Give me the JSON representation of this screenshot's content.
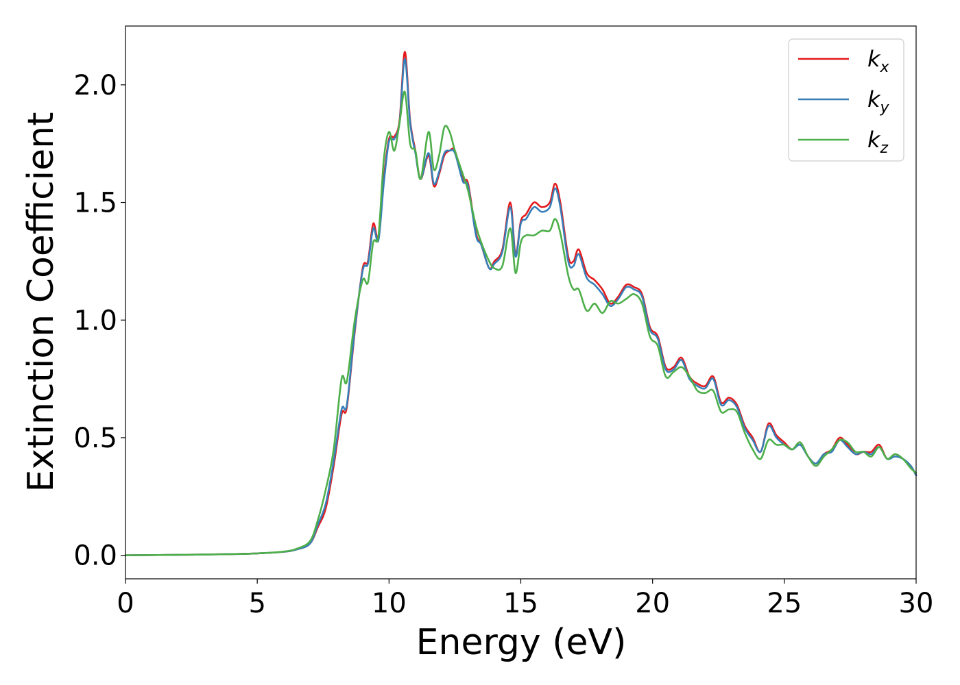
{
  "chart_data": {
    "type": "line",
    "xlabel": "Energy (eV)",
    "ylabel": "Extinction Coefficient",
    "xlim": [
      0,
      30
    ],
    "ylim": [
      -0.1,
      2.25
    ],
    "xticks": [
      "0",
      "5",
      "10",
      "15",
      "20",
      "25",
      "30"
    ],
    "yticks": [
      "0.0",
      "0.5",
      "1.0",
      "1.5",
      "2.0"
    ],
    "legend_position": "top-right",
    "grid": false,
    "colors": {
      "kx": "#e41a1c",
      "ky": "#377eb8",
      "kz": "#4daf4a"
    },
    "series": [
      {
        "key": "kx",
        "name": "k",
        "subscript": "x",
        "color": "#e41a1c",
        "x": [
          0,
          2,
          4,
          5,
          6,
          6.5,
          7,
          7.3,
          7.6,
          7.9,
          8.2,
          8.4,
          8.7,
          9.0,
          9.2,
          9.4,
          9.6,
          9.8,
          10.0,
          10.2,
          10.4,
          10.6,
          10.8,
          11.0,
          11.2,
          11.5,
          11.7,
          11.9,
          12.1,
          12.3,
          12.5,
          12.8,
          13.0,
          13.3,
          13.5,
          13.8,
          14.0,
          14.3,
          14.6,
          14.8,
          15.0,
          15.2,
          15.5,
          15.8,
          16.1,
          16.3,
          16.5,
          16.8,
          17.0,
          17.2,
          17.5,
          17.8,
          18.1,
          18.4,
          18.7,
          19.0,
          19.3,
          19.6,
          19.9,
          20.2,
          20.5,
          20.8,
          21.1,
          21.4,
          21.7,
          22.0,
          22.3,
          22.6,
          22.9,
          23.2,
          23.5,
          23.8,
          24.1,
          24.4,
          24.7,
          25.0,
          25.3,
          25.6,
          25.9,
          26.2,
          26.5,
          26.8,
          27.1,
          27.4,
          27.7,
          28.0,
          28.3,
          28.6,
          28.9,
          29.2,
          29.5,
          29.8,
          30.0
        ],
        "y": [
          0.0,
          0.002,
          0.005,
          0.008,
          0.015,
          0.025,
          0.05,
          0.12,
          0.2,
          0.38,
          0.6,
          0.63,
          0.95,
          1.22,
          1.25,
          1.41,
          1.35,
          1.6,
          1.77,
          1.78,
          1.85,
          2.14,
          1.85,
          1.72,
          1.6,
          1.7,
          1.57,
          1.62,
          1.7,
          1.72,
          1.72,
          1.6,
          1.58,
          1.37,
          1.32,
          1.22,
          1.25,
          1.3,
          1.5,
          1.28,
          1.42,
          1.45,
          1.5,
          1.48,
          1.5,
          1.58,
          1.5,
          1.27,
          1.25,
          1.3,
          1.2,
          1.17,
          1.13,
          1.07,
          1.1,
          1.15,
          1.14,
          1.11,
          0.97,
          0.93,
          0.8,
          0.8,
          0.84,
          0.76,
          0.73,
          0.72,
          0.76,
          0.65,
          0.67,
          0.64,
          0.55,
          0.5,
          0.44,
          0.56,
          0.51,
          0.48,
          0.45,
          0.48,
          0.42,
          0.39,
          0.43,
          0.45,
          0.5,
          0.47,
          0.43,
          0.44,
          0.44,
          0.47,
          0.41,
          0.43,
          0.41,
          0.38,
          0.34
        ]
      },
      {
        "key": "ky",
        "name": "k",
        "subscript": "y",
        "color": "#377eb8",
        "x": [
          0,
          2,
          4,
          5,
          6,
          6.5,
          7,
          7.3,
          7.6,
          7.9,
          8.2,
          8.4,
          8.7,
          9.0,
          9.2,
          9.4,
          9.6,
          9.8,
          10.0,
          10.2,
          10.4,
          10.6,
          10.8,
          11.0,
          11.2,
          11.5,
          11.7,
          11.9,
          12.1,
          12.3,
          12.5,
          12.8,
          13.0,
          13.3,
          13.5,
          13.8,
          14.0,
          14.3,
          14.6,
          14.8,
          15.0,
          15.2,
          15.5,
          15.8,
          16.1,
          16.3,
          16.5,
          16.8,
          17.0,
          17.2,
          17.5,
          17.8,
          18.1,
          18.4,
          18.7,
          19.0,
          19.3,
          19.6,
          19.9,
          20.2,
          20.5,
          20.8,
          21.1,
          21.4,
          21.7,
          22.0,
          22.3,
          22.6,
          22.9,
          23.2,
          23.5,
          23.8,
          24.1,
          24.4,
          24.7,
          25.0,
          25.3,
          25.6,
          25.9,
          26.2,
          26.5,
          26.8,
          27.1,
          27.4,
          27.7,
          28.0,
          28.3,
          28.6,
          28.9,
          29.2,
          29.5,
          29.8,
          30.0
        ],
        "y": [
          0.0,
          0.002,
          0.005,
          0.008,
          0.015,
          0.025,
          0.05,
          0.13,
          0.22,
          0.4,
          0.62,
          0.64,
          0.96,
          1.21,
          1.24,
          1.39,
          1.34,
          1.58,
          1.76,
          1.77,
          1.84,
          2.11,
          1.84,
          1.71,
          1.6,
          1.71,
          1.58,
          1.63,
          1.71,
          1.72,
          1.71,
          1.59,
          1.57,
          1.36,
          1.32,
          1.22,
          1.24,
          1.29,
          1.48,
          1.27,
          1.41,
          1.43,
          1.48,
          1.46,
          1.48,
          1.56,
          1.48,
          1.25,
          1.23,
          1.28,
          1.18,
          1.15,
          1.11,
          1.06,
          1.09,
          1.14,
          1.13,
          1.1,
          0.96,
          0.92,
          0.79,
          0.79,
          0.83,
          0.75,
          0.72,
          0.71,
          0.75,
          0.64,
          0.66,
          0.63,
          0.54,
          0.49,
          0.44,
          0.55,
          0.5,
          0.47,
          0.45,
          0.47,
          0.42,
          0.39,
          0.43,
          0.44,
          0.49,
          0.46,
          0.43,
          0.44,
          0.43,
          0.46,
          0.41,
          0.42,
          0.41,
          0.38,
          0.34
        ]
      },
      {
        "key": "kz",
        "name": "k",
        "subscript": "z",
        "color": "#4daf4a",
        "x": [
          0,
          2,
          4,
          5,
          6,
          6.5,
          7,
          7.3,
          7.6,
          7.9,
          8.2,
          8.4,
          8.7,
          9.0,
          9.2,
          9.4,
          9.6,
          9.8,
          10.0,
          10.2,
          10.4,
          10.6,
          10.8,
          11.0,
          11.2,
          11.5,
          11.7,
          11.9,
          12.1,
          12.3,
          12.5,
          12.8,
          13.0,
          13.3,
          13.5,
          13.8,
          14.0,
          14.3,
          14.6,
          14.8,
          15.0,
          15.2,
          15.5,
          15.8,
          16.1,
          16.3,
          16.5,
          16.8,
          17.0,
          17.2,
          17.5,
          17.8,
          18.1,
          18.4,
          18.7,
          19.0,
          19.3,
          19.6,
          19.9,
          20.2,
          20.5,
          20.8,
          21.1,
          21.4,
          21.7,
          22.0,
          22.3,
          22.6,
          22.9,
          23.2,
          23.5,
          23.8,
          24.1,
          24.4,
          24.7,
          25.0,
          25.3,
          25.6,
          25.9,
          26.2,
          26.5,
          26.8,
          27.1,
          27.4,
          27.7,
          28.0,
          28.3,
          28.6,
          28.9,
          29.2,
          29.5,
          29.8,
          30.0
        ],
        "y": [
          0.0,
          0.002,
          0.005,
          0.008,
          0.016,
          0.028,
          0.06,
          0.15,
          0.28,
          0.45,
          0.75,
          0.74,
          1.0,
          1.17,
          1.16,
          1.33,
          1.36,
          1.68,
          1.8,
          1.72,
          1.84,
          1.97,
          1.75,
          1.72,
          1.6,
          1.8,
          1.64,
          1.7,
          1.82,
          1.8,
          1.72,
          1.62,
          1.55,
          1.4,
          1.33,
          1.25,
          1.22,
          1.23,
          1.39,
          1.2,
          1.33,
          1.36,
          1.36,
          1.38,
          1.38,
          1.43,
          1.37,
          1.19,
          1.13,
          1.13,
          1.04,
          1.07,
          1.03,
          1.08,
          1.07,
          1.09,
          1.11,
          1.07,
          0.93,
          0.89,
          0.76,
          0.78,
          0.8,
          0.76,
          0.7,
          0.69,
          0.7,
          0.61,
          0.62,
          0.61,
          0.52,
          0.45,
          0.41,
          0.49,
          0.47,
          0.47,
          0.45,
          0.48,
          0.42,
          0.38,
          0.42,
          0.45,
          0.49,
          0.48,
          0.44,
          0.44,
          0.42,
          0.46,
          0.41,
          0.43,
          0.41,
          0.37,
          0.35
        ]
      }
    ]
  }
}
